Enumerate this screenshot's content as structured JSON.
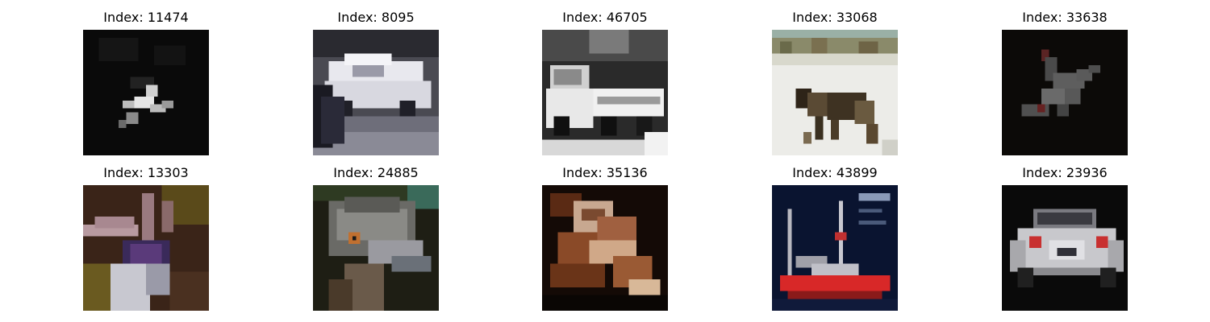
{
  "grid": {
    "rows": [
      [
        {
          "label": "Index: 11474",
          "scene": "airplane-dark-night"
        },
        {
          "label": "Index: 8095",
          "scene": "white-car-street"
        },
        {
          "label": "Index: 46705",
          "scene": "truck-grayscale"
        },
        {
          "label": "Index: 33068",
          "scene": "moose-snow"
        },
        {
          "label": "Index: 33638",
          "scene": "airplane-dark-sky"
        }
      ],
      [
        {
          "label": "Index: 13303",
          "scene": "bird-purple-branch"
        },
        {
          "label": "Index: 24885",
          "scene": "emu-head-closeup"
        },
        {
          "label": "Index: 35136",
          "scene": "frog-brown-dark"
        },
        {
          "label": "Index: 43899",
          "scene": "red-ship-dark-blue"
        },
        {
          "label": "Index: 23936",
          "scene": "white-car-rear"
        }
      ]
    ]
  }
}
